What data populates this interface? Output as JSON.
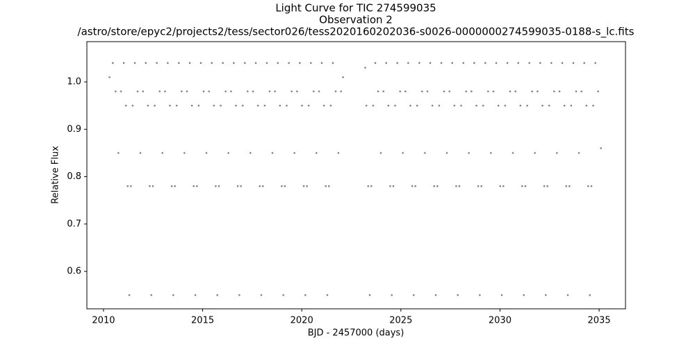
{
  "chart_data": {
    "type": "scatter",
    "title": [
      "Light Curve for TIC 274599035",
      "Observation 2",
      "/astro/store/epyc2/projects2/tess/sector026/tess2020160202036-s0026-0000000274599035-0188-s_lc.fits"
    ],
    "xlabel": "BJD - 2457000 (days)",
    "ylabel": "Relative Flux",
    "color": "#808080",
    "xlim": [
      2009.16,
      2036.33
    ],
    "ylim": [
      0.521,
      1.085
    ],
    "xticks": [
      2010,
      2015,
      2020,
      2025,
      2030,
      2035
    ],
    "yticks": [
      0.6,
      0.7,
      0.8,
      0.9,
      {
        "value": 1,
        "label": "1.0"
      }
    ],
    "x": [
      2010.3,
      2010.47,
      2010.61,
      2010.75,
      2010.88,
      2011.02,
      2011.13,
      2011.22,
      2011.3,
      2011.38,
      2011.47,
      2011.58,
      2011.72,
      2011.86,
      2011.99,
      2012.13,
      2012.24,
      2012.33,
      2012.41,
      2012.49,
      2012.58,
      2012.69,
      2012.83,
      2012.97,
      2013.1,
      2013.24,
      2013.35,
      2013.44,
      2013.52,
      2013.6,
      2013.69,
      2013.8,
      2013.94,
      2014.08,
      2014.21,
      2014.35,
      2014.46,
      2014.55,
      2014.63,
      2014.71,
      2014.8,
      2014.91,
      2015.05,
      2015.19,
      2015.32,
      2015.46,
      2015.57,
      2015.66,
      2015.74,
      2015.82,
      2015.91,
      2016.02,
      2016.16,
      2016.3,
      2016.43,
      2016.57,
      2016.68,
      2016.77,
      2016.85,
      2016.93,
      2017.02,
      2017.13,
      2017.27,
      2017.41,
      2017.54,
      2017.68,
      2017.79,
      2017.88,
      2017.96,
      2018.04,
      2018.13,
      2018.24,
      2018.38,
      2018.52,
      2018.65,
      2018.79,
      2018.9,
      2018.99,
      2019.07,
      2019.15,
      2019.24,
      2019.35,
      2019.49,
      2019.63,
      2019.76,
      2019.9,
      2020.01,
      2020.1,
      2020.18,
      2020.26,
      2020.35,
      2020.46,
      2020.6,
      2020.74,
      2020.87,
      2021.01,
      2021.12,
      2021.21,
      2021.29,
      2021.37,
      2021.46,
      2021.57,
      2021.71,
      2021.85,
      2021.98,
      2022.08,
      2023.2,
      2023.26,
      2023.35,
      2023.43,
      2023.51,
      2023.6,
      2023.71,
      2023.85,
      2023.99,
      2024.12,
      2024.26,
      2024.37,
      2024.46,
      2024.54,
      2024.62,
      2024.71,
      2024.82,
      2024.96,
      2025.1,
      2025.23,
      2025.37,
      2025.48,
      2025.57,
      2025.65,
      2025.73,
      2025.82,
      2025.93,
      2026.07,
      2026.21,
      2026.34,
      2026.48,
      2026.59,
      2026.68,
      2026.76,
      2026.84,
      2026.93,
      2027.04,
      2027.18,
      2027.32,
      2027.45,
      2027.59,
      2027.7,
      2027.79,
      2027.87,
      2027.95,
      2028.04,
      2028.15,
      2028.29,
      2028.43,
      2028.56,
      2028.7,
      2028.81,
      2028.9,
      2028.98,
      2029.06,
      2029.15,
      2029.26,
      2029.4,
      2029.54,
      2029.67,
      2029.81,
      2029.92,
      2030.01,
      2030.09,
      2030.17,
      2030.26,
      2030.37,
      2030.51,
      2030.65,
      2030.78,
      2030.92,
      2031.03,
      2031.12,
      2031.2,
      2031.28,
      2031.37,
      2031.48,
      2031.62,
      2031.76,
      2031.89,
      2032.03,
      2032.14,
      2032.23,
      2032.31,
      2032.39,
      2032.48,
      2032.59,
      2032.73,
      2032.87,
      2033.0,
      2033.14,
      2033.25,
      2033.34,
      2033.42,
      2033.5,
      2033.59,
      2033.7,
      2033.84,
      2033.98,
      2034.11,
      2034.25,
      2034.36,
      2034.45,
      2034.53,
      2034.61,
      2034.7,
      2034.81,
      2034.95,
      2035.09
    ],
    "values": [
      1.01,
      1.04,
      0.98,
      0.85,
      0.98,
      1.04,
      0.95,
      0.78,
      0.55,
      0.78,
      0.95,
      1.04,
      0.98,
      0.85,
      0.98,
      1.04,
      0.95,
      0.78,
      0.55,
      0.78,
      0.95,
      1.04,
      0.98,
      0.85,
      0.98,
      1.04,
      0.95,
      0.78,
      0.55,
      0.78,
      0.95,
      1.04,
      0.98,
      0.85,
      0.98,
      1.04,
      0.95,
      0.78,
      0.55,
      0.78,
      0.95,
      1.04,
      0.98,
      0.85,
      0.98,
      1.04,
      0.95,
      0.78,
      0.55,
      0.78,
      0.95,
      1.04,
      0.98,
      0.85,
      0.98,
      1.04,
      0.95,
      0.78,
      0.55,
      0.78,
      0.95,
      1.04,
      0.98,
      0.85,
      0.98,
      1.04,
      0.95,
      0.78,
      0.55,
      0.78,
      0.95,
      1.04,
      0.98,
      0.85,
      0.98,
      1.04,
      0.95,
      0.78,
      0.55,
      0.78,
      0.95,
      1.04,
      0.98,
      0.85,
      0.98,
      1.04,
      0.95,
      0.78,
      0.55,
      0.78,
      0.95,
      1.04,
      0.98,
      0.85,
      0.98,
      1.04,
      0.95,
      0.78,
      0.55,
      0.78,
      0.95,
      1.04,
      0.98,
      0.85,
      0.98,
      1.01,
      1.03,
      0.95,
      0.78,
      0.55,
      0.78,
      0.95,
      1.04,
      0.98,
      0.85,
      0.98,
      1.04,
      0.95,
      0.78,
      0.55,
      0.78,
      0.95,
      1.04,
      0.98,
      0.85,
      0.98,
      1.04,
      0.95,
      0.78,
      0.55,
      0.78,
      0.95,
      1.04,
      0.98,
      0.85,
      0.98,
      1.04,
      0.95,
      0.78,
      0.55,
      0.78,
      0.95,
      1.04,
      0.98,
      0.85,
      0.98,
      1.04,
      0.95,
      0.78,
      0.55,
      0.78,
      0.95,
      1.04,
      0.98,
      0.85,
      0.98,
      1.04,
      0.95,
      0.78,
      0.55,
      0.78,
      0.95,
      1.04,
      0.98,
      0.85,
      0.98,
      1.04,
      0.95,
      0.78,
      0.55,
      0.78,
      0.95,
      1.04,
      0.98,
      0.85,
      0.98,
      1.04,
      0.95,
      0.78,
      0.55,
      0.78,
      0.95,
      1.04,
      0.98,
      0.85,
      0.98,
      1.04,
      0.95,
      0.78,
      0.55,
      0.78,
      0.95,
      1.04,
      0.98,
      0.85,
      0.98,
      1.04,
      0.95,
      0.78,
      0.55,
      0.78,
      0.95,
      1.04,
      0.98,
      0.85,
      0.98,
      1.04,
      0.95,
      0.78,
      0.55,
      0.78,
      0.95,
      1.04,
      0.98,
      0.86
    ]
  }
}
